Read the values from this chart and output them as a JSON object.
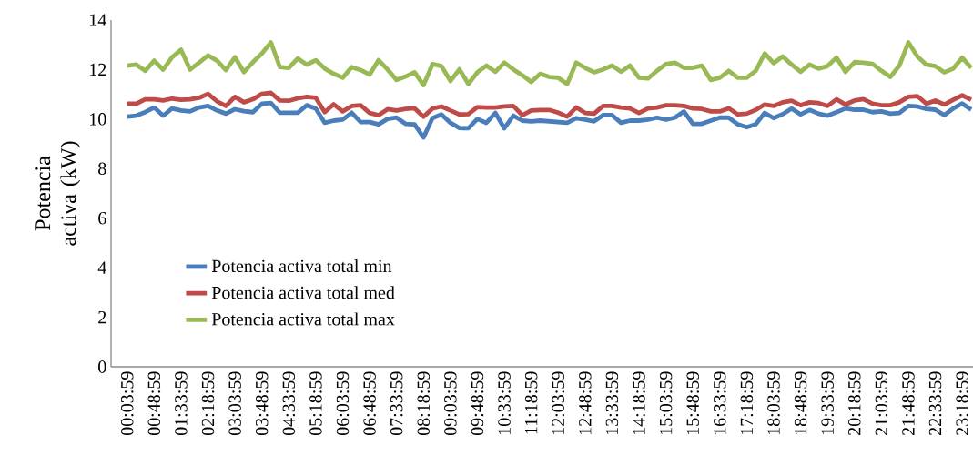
{
  "chart_data": {
    "type": "line",
    "ylabel": "Potencia activa (kW)",
    "categories": [
      "00:03:59",
      null,
      null,
      "00:48:59",
      null,
      null,
      "01:33:59",
      null,
      null,
      "02:18:59",
      null,
      null,
      "03:03:59",
      null,
      null,
      "03:48:59",
      null,
      null,
      "04:33:59",
      null,
      null,
      "05:18:59",
      null,
      null,
      "06:03:59",
      null,
      null,
      "06:48:59",
      null,
      null,
      "07:33:59",
      null,
      null,
      "08:18:59",
      null,
      null,
      "09:03:59",
      null,
      null,
      "09:48:59",
      null,
      null,
      "10:33:59",
      null,
      null,
      "11:18:59",
      null,
      null,
      "12:03:59",
      null,
      null,
      "12:48:59",
      null,
      null,
      "13:33:59",
      null,
      null,
      "14:18:59",
      null,
      null,
      "15:03:59",
      null,
      null,
      "15:48:59",
      null,
      null,
      "16:33:59",
      null,
      null,
      "17:18:59",
      null,
      null,
      "18:03:59",
      null,
      null,
      "18:48:59",
      null,
      null,
      "19:33:59",
      null,
      null,
      "20:18:59",
      null,
      null,
      "21:03:59",
      null,
      null,
      "21:48:59",
      null,
      null,
      "22:33:59",
      null,
      null,
      "23:18:59",
      null
    ],
    "series": [
      {
        "name": "Potencia activa total min",
        "color": "#4a7ebb",
        "values": [
          10.1,
          10.14,
          10.28,
          10.47,
          10.14,
          10.43,
          10.35,
          10.31,
          10.47,
          10.53,
          10.35,
          10.22,
          10.4,
          10.32,
          10.28,
          10.62,
          10.65,
          10.26,
          10.26,
          10.26,
          10.56,
          10.43,
          9.85,
          9.94,
          9.98,
          10.26,
          9.88,
          9.88,
          9.79,
          10.01,
          10.06,
          9.81,
          9.79,
          9.26,
          10.04,
          10.19,
          9.85,
          9.64,
          9.63,
          10.01,
          9.85,
          10.25,
          9.63,
          10.14,
          9.94,
          9.91,
          9.94,
          9.91,
          9.88,
          9.85,
          10.04,
          9.98,
          9.91,
          10.16,
          10.16,
          9.85,
          9.94,
          9.94,
          9.98,
          10.06,
          9.98,
          10.06,
          10.31,
          9.81,
          9.81,
          9.94,
          10.06,
          10.06,
          9.79,
          9.67,
          9.79,
          10.25,
          10.04,
          10.2,
          10.43,
          10.19,
          10.37,
          10.22,
          10.14,
          10.28,
          10.43,
          10.38,
          10.38,
          10.28,
          10.31,
          10.22,
          10.25,
          10.53,
          10.51,
          10.41,
          10.38,
          10.16,
          10.43,
          10.63,
          10.38
        ]
      },
      {
        "name": "Potencia activa total med",
        "color": "#be4b48",
        "values": [
          10.62,
          10.62,
          10.8,
          10.8,
          10.75,
          10.83,
          10.78,
          10.8,
          10.86,
          11.02,
          10.72,
          10.53,
          10.9,
          10.68,
          10.8,
          11.02,
          11.06,
          10.75,
          10.74,
          10.84,
          10.9,
          10.86,
          10.28,
          10.6,
          10.31,
          10.53,
          10.56,
          10.25,
          10.16,
          10.4,
          10.35,
          10.41,
          10.44,
          10.1,
          10.43,
          10.51,
          10.35,
          10.19,
          10.2,
          10.49,
          10.47,
          10.47,
          10.51,
          10.53,
          10.16,
          10.35,
          10.37,
          10.37,
          10.26,
          10.1,
          10.47,
          10.25,
          10.22,
          10.53,
          10.53,
          10.47,
          10.43,
          10.25,
          10.43,
          10.47,
          10.56,
          10.56,
          10.53,
          10.43,
          10.41,
          10.31,
          10.31,
          10.44,
          10.19,
          10.22,
          10.37,
          10.59,
          10.53,
          10.68,
          10.74,
          10.56,
          10.68,
          10.65,
          10.53,
          10.8,
          10.59,
          10.75,
          10.81,
          10.62,
          10.56,
          10.56,
          10.68,
          10.9,
          10.93,
          10.62,
          10.75,
          10.59,
          10.78,
          10.96,
          10.78
        ]
      },
      {
        "name": "Potencia activa total max",
        "color": "#98b954",
        "values": [
          12.16,
          12.2,
          11.95,
          12.36,
          12.0,
          12.5,
          12.8,
          12.0,
          12.28,
          12.57,
          12.36,
          11.98,
          12.5,
          11.9,
          12.3,
          12.65,
          13.1,
          12.1,
          12.07,
          12.45,
          12.2,
          12.38,
          12.04,
          11.83,
          11.67,
          12.1,
          11.98,
          11.8,
          12.38,
          12.0,
          11.58,
          11.72,
          11.89,
          11.37,
          12.22,
          12.14,
          11.54,
          12.01,
          11.42,
          11.89,
          12.16,
          11.91,
          12.28,
          12.01,
          11.77,
          11.5,
          11.83,
          11.7,
          11.67,
          11.42,
          12.28,
          12.07,
          11.89,
          12.01,
          12.16,
          11.91,
          12.16,
          11.67,
          11.64,
          11.95,
          12.22,
          12.28,
          12.07,
          12.07,
          12.16,
          11.58,
          11.67,
          11.95,
          11.67,
          11.67,
          11.95,
          12.65,
          12.26,
          12.53,
          12.2,
          11.91,
          12.2,
          12.04,
          12.14,
          12.48,
          11.91,
          12.3,
          12.28,
          12.23,
          11.95,
          11.7,
          12.16,
          13.1,
          12.53,
          12.2,
          12.14,
          11.89,
          12.04,
          12.48,
          12.07
        ]
      }
    ],
    "ylim": [
      0,
      14
    ],
    "yticks": [
      0,
      2,
      4,
      6,
      8,
      10,
      12,
      14
    ],
    "legend": "bottom left",
    "marker": "none",
    "line_style": "solid",
    "grid": false
  }
}
